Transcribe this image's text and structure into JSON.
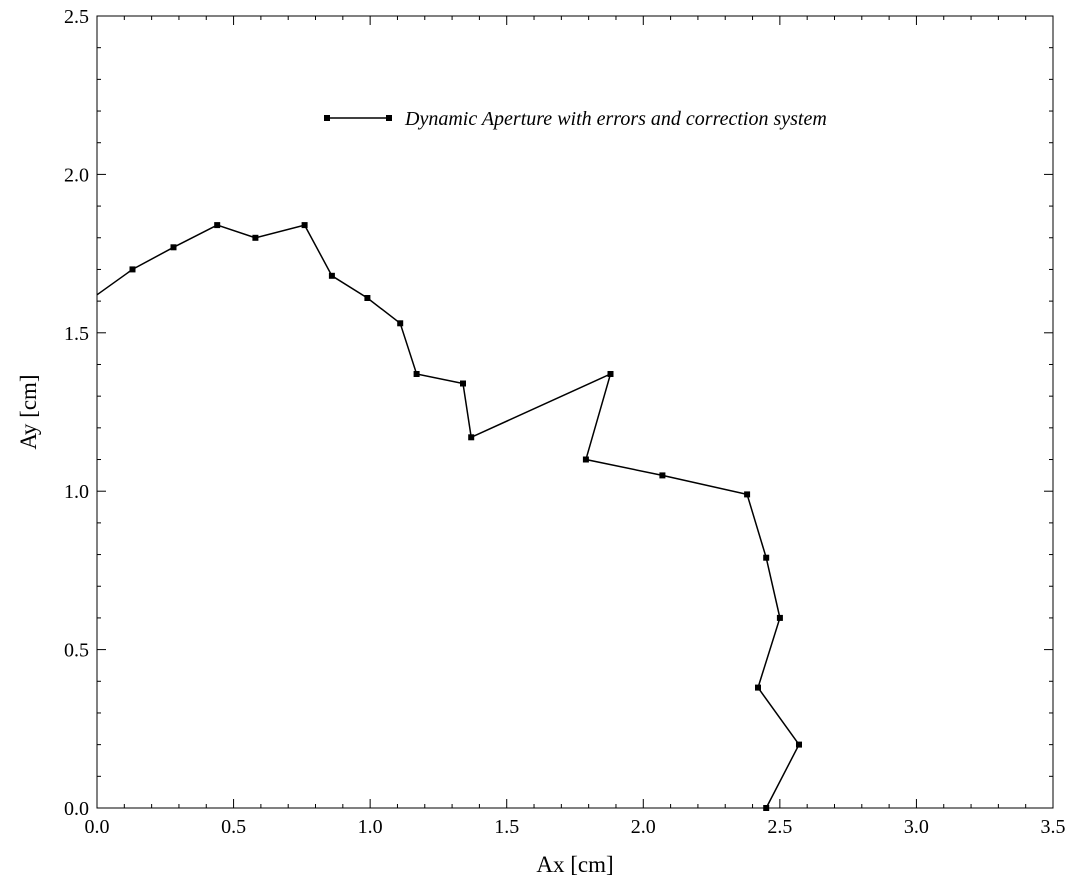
{
  "chart_data": {
    "type": "line",
    "title": "",
    "xlabel": "Ax [cm]",
    "ylabel": "Ay [cm]",
    "xlim": [
      0,
      3.5
    ],
    "ylim": [
      0,
      2.5
    ],
    "xticks": [
      0,
      0.5,
      1.0,
      1.5,
      2.0,
      2.5,
      3.0,
      3.5
    ],
    "yticks": [
      0,
      0.5,
      1.0,
      1.5,
      2.0,
      2.5
    ],
    "xtick_labels": [
      "0.0",
      "0.5",
      "1.0",
      "1.5",
      "2.0",
      "2.5",
      "3.0",
      "3.5"
    ],
    "ytick_labels": [
      "0.0",
      "0.5",
      "1.0",
      "1.5",
      "2.0",
      "2.5"
    ],
    "grid": false,
    "minor_ticks": true,
    "legend_position": "top-right",
    "series": [
      {
        "name": "Dynamic Aperture with errors and correction system",
        "color": "#000000",
        "marker": "square",
        "x": [
          0.0,
          0.13,
          0.28,
          0.44,
          0.58,
          0.76,
          0.86,
          0.99,
          1.11,
          1.17,
          1.34,
          1.37,
          1.88,
          1.79,
          2.07,
          2.38,
          2.45,
          2.5,
          2.42,
          2.57,
          2.45
        ],
        "y": [
          1.62,
          1.7,
          1.77,
          1.84,
          1.8,
          1.84,
          1.68,
          1.61,
          1.53,
          1.37,
          1.34,
          1.17,
          1.37,
          1.1,
          1.05,
          0.99,
          0.79,
          0.6,
          0.38,
          0.2,
          0.0
        ]
      }
    ]
  }
}
